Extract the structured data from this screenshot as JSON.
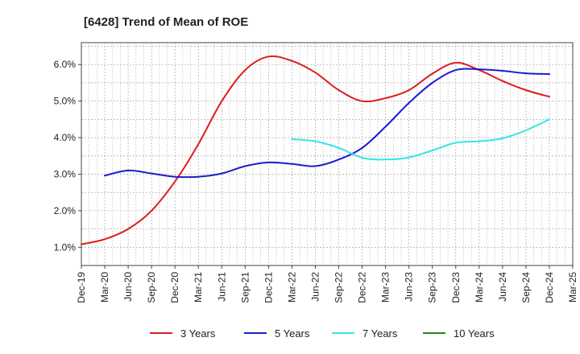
{
  "chart_data": {
    "type": "line",
    "title": "[6428]  Trend of Mean of ROE",
    "xlabel": "",
    "ylabel": "",
    "x_tick_labels": [
      "Dec-19",
      "Mar-20",
      "Jun-20",
      "Sep-20",
      "Dec-20",
      "Mar-21",
      "Jun-21",
      "Sep-21",
      "Dec-21",
      "Mar-22",
      "Jun-22",
      "Sep-22",
      "Dec-22",
      "Mar-23",
      "Jun-23",
      "Sep-23",
      "Dec-23",
      "Mar-24",
      "Jun-24",
      "Sep-24",
      "Dec-24",
      "Mar-25"
    ],
    "y_ticks": [
      1.0,
      2.0,
      3.0,
      4.0,
      5.0,
      6.0
    ],
    "y_tick_labels": [
      "1.0%",
      "2.0%",
      "3.0%",
      "4.0%",
      "5.0%",
      "6.0%"
    ],
    "ylim": [
      0.5,
      6.6
    ],
    "grid": true,
    "legend_position": "bottom",
    "series": [
      {
        "name": "3 Years",
        "color": "#dd1c1c",
        "points": [
          [
            "Dec-19",
            1.08
          ],
          [
            "Mar-20",
            1.22
          ],
          [
            "Jun-20",
            1.5
          ],
          [
            "Sep-20",
            2.0
          ],
          [
            "Dec-20",
            2.8
          ],
          [
            "Mar-21",
            3.82
          ],
          [
            "Jun-21",
            5.0
          ],
          [
            "Sep-21",
            5.85
          ],
          [
            "Dec-21",
            6.22
          ],
          [
            "Mar-22",
            6.1
          ],
          [
            "Jun-22",
            5.78
          ],
          [
            "Sep-22",
            5.3
          ],
          [
            "Dec-22",
            5.0
          ],
          [
            "Mar-23",
            5.08
          ],
          [
            "Jun-23",
            5.3
          ],
          [
            "Sep-23",
            5.75
          ],
          [
            "Dec-23",
            6.05
          ],
          [
            "Mar-24",
            5.85
          ],
          [
            "Jun-24",
            5.55
          ],
          [
            "Sep-24",
            5.3
          ],
          [
            "Dec-24",
            5.12
          ]
        ]
      },
      {
        "name": "5 Years",
        "color": "#1c1ccc",
        "points": [
          [
            "Mar-20",
            2.96
          ],
          [
            "Jun-20",
            3.1
          ],
          [
            "Sep-20",
            3.02
          ],
          [
            "Dec-20",
            2.93
          ],
          [
            "Mar-21",
            2.93
          ],
          [
            "Jun-21",
            3.02
          ],
          [
            "Sep-21",
            3.22
          ],
          [
            "Dec-21",
            3.32
          ],
          [
            "Mar-22",
            3.28
          ],
          [
            "Jun-22",
            3.22
          ],
          [
            "Sep-22",
            3.4
          ],
          [
            "Dec-22",
            3.72
          ],
          [
            "Mar-23",
            4.3
          ],
          [
            "Jun-23",
            4.95
          ],
          [
            "Sep-23",
            5.5
          ],
          [
            "Dec-23",
            5.85
          ],
          [
            "Mar-24",
            5.87
          ],
          [
            "Jun-24",
            5.83
          ],
          [
            "Sep-24",
            5.76
          ],
          [
            "Dec-24",
            5.74
          ]
        ]
      },
      {
        "name": "7 Years",
        "color": "#33e6e6",
        "points": [
          [
            "Mar-22",
            3.96
          ],
          [
            "Jun-22",
            3.9
          ],
          [
            "Sep-22",
            3.72
          ],
          [
            "Dec-22",
            3.45
          ],
          [
            "Mar-23",
            3.4
          ],
          [
            "Jun-23",
            3.46
          ],
          [
            "Sep-23",
            3.65
          ],
          [
            "Dec-23",
            3.86
          ],
          [
            "Mar-24",
            3.9
          ],
          [
            "Jun-24",
            3.98
          ],
          [
            "Sep-24",
            4.2
          ],
          [
            "Dec-24",
            4.5
          ]
        ]
      },
      {
        "name": "10 Years",
        "color": "#1c8c1c",
        "points": []
      }
    ]
  }
}
